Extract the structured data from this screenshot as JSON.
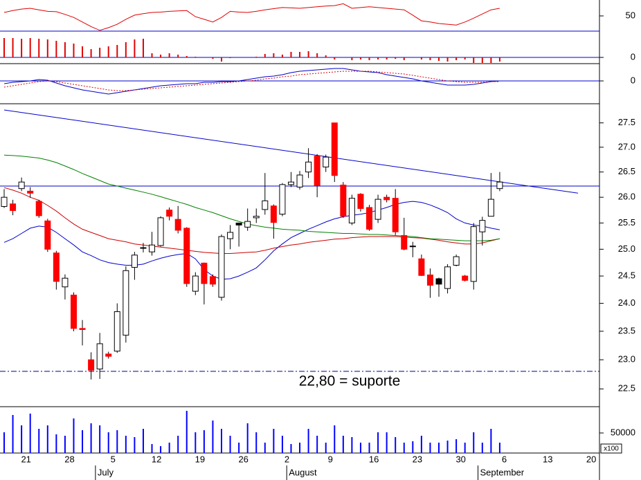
{
  "chart_data": [
    {
      "type": "line",
      "ylim": [
        30,
        70.9
      ],
      "yticks": [
        50
      ],
      "series": [
        {
          "color": "#e00000",
          "values": [
            54.5,
            57,
            59,
            60,
            58,
            56,
            55.5,
            52,
            48,
            42,
            36,
            31,
            34.5,
            39,
            45.5,
            51,
            53,
            54.5,
            55,
            56,
            56.5,
            57,
            49,
            45.5,
            42,
            48,
            56,
            55,
            54.5,
            56,
            58,
            59.5,
            61,
            60.5,
            60,
            61,
            62,
            63,
            63.5,
            66,
            60,
            61,
            62,
            61,
            60,
            59,
            58,
            51,
            43.5,
            42,
            40,
            39,
            38,
            42,
            47,
            52.5,
            58,
            60
          ]
        }
      ],
      "hlines": [
        {
          "value": 30,
          "color": "#0000cc"
        }
      ]
    },
    {
      "type": "bar",
      "ylim": [
        -9,
        38
      ],
      "yticks": [
        0
      ],
      "color": "#e00000",
      "values": [
        28,
        28,
        27,
        28,
        27,
        26,
        24,
        22,
        20,
        16,
        12,
        14,
        16,
        18,
        22,
        26,
        27,
        6,
        4,
        6,
        4,
        2,
        1,
        0,
        -2,
        -6,
        -1,
        0,
        0,
        1,
        5,
        6,
        4,
        8,
        8,
        9,
        6,
        3,
        -3,
        0,
        -4,
        -3,
        -4,
        -3,
        -3,
        -2,
        -4,
        0,
        -3,
        -4,
        -5,
        -6,
        -4,
        -3,
        -8,
        -8,
        -8,
        -6
      ],
      "hlines": [
        {
          "value": 0,
          "color": "#0000cc"
        }
      ]
    },
    {
      "type": "line",
      "ylim": [
        -0.33,
        0.25
      ],
      "yticks": [
        0
      ],
      "series": [
        {
          "color": "#0000cc",
          "values": [
            -0.04,
            -0.02,
            -0.01,
            0,
            0.02,
            0.01,
            -0.03,
            -0.07,
            -0.1,
            -0.13,
            -0.15,
            -0.17,
            -0.19,
            -0.17,
            -0.15,
            -0.13,
            -0.11,
            -0.09,
            -0.07,
            -0.06,
            -0.05,
            -0.04,
            -0.04,
            -0.02,
            -0.02,
            -0.01,
            -0.01,
            0,
            0.02,
            0.04,
            0.06,
            0.07,
            0.09,
            0.12,
            0.14,
            0.15,
            0.16,
            0.17,
            0.18,
            0.18,
            0.16,
            0.14,
            0.13,
            0.12,
            0.09,
            0.07,
            0.05,
            0.03,
            0,
            -0.02,
            -0.04,
            -0.06,
            -0.06,
            -0.06,
            -0.05,
            -0.03,
            -0.01,
            0
          ]
        },
        {
          "color": "#e00000",
          "dash": "dotted",
          "values": [
            -0.09,
            -0.07,
            -0.05,
            -0.03,
            -0.01,
            0,
            -0.01,
            -0.03,
            -0.05,
            -0.07,
            -0.09,
            -0.11,
            -0.13,
            -0.14,
            -0.14,
            -0.13,
            -0.12,
            -0.11,
            -0.1,
            -0.09,
            -0.08,
            -0.07,
            -0.06,
            -0.05,
            -0.04,
            -0.03,
            -0.02,
            -0.01,
            0,
            0.01,
            0.03,
            0.04,
            0.06,
            0.07,
            0.09,
            0.1,
            0.11,
            0.12,
            0.13,
            0.14,
            0.14,
            0.14,
            0.14,
            0.13,
            0.12,
            0.11,
            0.1,
            0.08,
            0.06,
            0.04,
            0.02,
            0,
            -0.01,
            -0.02,
            -0.02,
            -0.02,
            -0.01,
            -0.01
          ]
        }
      ],
      "hlines": [
        {
          "value": 0,
          "color": "#0000cc"
        }
      ]
    },
    {
      "type": "candlestick",
      "log": true,
      "ylim": [
        22.2,
        27.9
      ],
      "yticks": [
        22.5,
        {
          "value": 23,
          "label": "23.0"
        },
        23.5,
        {
          "value": 24,
          "label": "24.0"
        },
        24.5,
        {
          "value": 25,
          "label": "25.0"
        },
        25.5,
        {
          "value": 26,
          "label": "26.0"
        },
        26.5,
        {
          "value": 27,
          "label": "27.0"
        },
        27.5
      ],
      "open": [
        25.82,
        25.87,
        26.17,
        26.12,
        25.92,
        25.54,
        24.93,
        24.3,
        24.15,
        23.55,
        23.0,
        22.84,
        23.1,
        23.15,
        23.43,
        24.66,
        25.02,
        24.95,
        25.07,
        25.75,
        25.57,
        25.4,
        24.22,
        24.74,
        24.49,
        24.11,
        25.2,
        25.46,
        25.42,
        25.6,
        25.76,
        25.83,
        25.67,
        26.25,
        26.2,
        26.5,
        26.82,
        26.6,
        27.5,
        26.24,
        25.5,
        26.06,
        25.8,
        25.57,
        26.0,
        25.98,
        25.26,
        25.05,
        24.82,
        24.52,
        24.35,
        24.27,
        24.7,
        24.5,
        24.4,
        25.33,
        25.63,
        26.17
      ],
      "high": [
        26.16,
        25.95,
        26.39,
        26.2,
        25.95,
        25.58,
        24.97,
        24.53,
        24.2,
        23.7,
        23.13,
        23.47,
        23.14,
        24.0,
        24.68,
        24.95,
        25.12,
        25.33,
        25.63,
        25.8,
        25.83,
        25.42,
        24.57,
        24.75,
        24.53,
        25.28,
        25.46,
        25.5,
        25.78,
        25.78,
        26.48,
        25.86,
        26.28,
        26.5,
        26.52,
        26.98,
        26.86,
        26.85,
        27.5,
        26.3,
        26.05,
        26.08,
        25.85,
        26.05,
        26.05,
        26.16,
        25.6,
        25.14,
        24.9,
        24.64,
        24.47,
        24.72,
        24.9,
        24.52,
        25.5,
        25.62,
        26.48,
        26.5
      ],
      "low": [
        25.79,
        25.65,
        26.12,
        25.99,
        25.6,
        24.95,
        24.25,
        24.07,
        23.5,
        23.25,
        22.66,
        22.67,
        23.02,
        23.12,
        23.3,
        24.43,
        24.94,
        24.88,
        25.05,
        25.55,
        25.3,
        24.3,
        24.15,
        23.98,
        24.3,
        24.05,
        25.0,
        25.05,
        25.35,
        25.5,
        25.66,
        25.2,
        25.63,
        26.2,
        26.15,
        26.38,
        26.0,
        26.5,
        26.3,
        25.6,
        25.46,
        25.72,
        25.35,
        25.5,
        25.9,
        25.27,
        24.98,
        24.85,
        24.5,
        24.1,
        24.12,
        24.18,
        24.68,
        24.4,
        24.25,
        25.07,
        25.63,
        26.12
      ],
      "close": [
        26.0,
        25.74,
        26.3,
        26.08,
        25.64,
        25.0,
        24.4,
        24.46,
        23.55,
        23.53,
        22.82,
        23.28,
        23.06,
        23.85,
        24.6,
        24.89,
        25.03,
        25.08,
        25.6,
        25.63,
        25.36,
        24.36,
        24.5,
        24.36,
        24.35,
        25.24,
        25.32,
        25.5,
        25.53,
        25.63,
        25.93,
        25.51,
        26.25,
        26.3,
        26.44,
        26.7,
        26.23,
        26.8,
        26.43,
        25.63,
        25.98,
        25.78,
        25.38,
        25.96,
        25.95,
        25.33,
        25.0,
        25.06,
        24.51,
        24.33,
        24.45,
        24.67,
        24.86,
        24.42,
        25.43,
        25.55,
        25.96,
        26.3
      ],
      "colors": [
        "#ffffff",
        "#ff0000",
        "#ffffff",
        "#ff0000",
        "#ff0000",
        "#ff0000",
        "#ff0000",
        "#ffffff",
        "#ff0000",
        "#ff0000",
        "#ff0000",
        "#ffffff",
        "#ff0000",
        "#ffffff",
        "#ffffff",
        "#ffffff",
        "#000000",
        "#ffffff",
        "#ffffff",
        "#ff0000",
        "#ff0000",
        "#ff0000",
        "#ffffff",
        "#ff0000",
        "#ff0000",
        "#ffffff",
        "#ffffff",
        "#000000",
        "#ffffff",
        "#ffffff",
        "#ffffff",
        "#ff0000",
        "#ffffff",
        "#ffffff",
        "#ffffff",
        "#ffffff",
        "#ff0000",
        "#ffffff",
        "#ff0000",
        "#ff0000",
        "#ffffff",
        "#ff0000",
        "#ff0000",
        "#ffffff",
        "#ff0000",
        "#ff0000",
        "#ff0000",
        "#000000",
        "#ff0000",
        "#ff0000",
        "#000000",
        "#ffffff",
        "#ffffff",
        "#ff0000",
        "#ffffff",
        "#ffffff",
        "#ffffff",
        "#ffffff"
      ],
      "series": [
        {
          "color": "#0000cc",
          "values": [
            25.13,
            25.2,
            25.3,
            25.4,
            25.44,
            25.42,
            25.32,
            25.2,
            25.08,
            24.95,
            24.88,
            24.8,
            24.75,
            24.72,
            24.7,
            24.7,
            24.72,
            24.78,
            24.83,
            24.87,
            24.9,
            24.92,
            24.82,
            24.62,
            24.5,
            24.44,
            24.45,
            24.5,
            24.57,
            24.65,
            24.8,
            24.97,
            25.1,
            25.22,
            25.3,
            25.38,
            25.45,
            25.52,
            25.58,
            25.62,
            25.65,
            25.67,
            25.7,
            25.75,
            25.8,
            25.86,
            25.9,
            25.92,
            25.9,
            25.85,
            25.78,
            25.7,
            25.58,
            25.5,
            25.46,
            25.44,
            25.4,
            25.37
          ]
        },
        {
          "color": "#cc0000",
          "values": [
            26.19,
            26.14,
            26.08,
            26.0,
            25.94,
            25.84,
            25.73,
            25.6,
            25.48,
            25.38,
            25.32,
            25.26,
            25.2,
            25.17,
            25.14,
            25.1,
            25.08,
            25.06,
            25.04,
            25.02,
            25.0,
            24.98,
            24.96,
            24.94,
            24.93,
            24.92,
            24.92,
            24.93,
            24.94,
            24.95,
            24.98,
            25.02,
            25.05,
            25.08,
            25.1,
            25.13,
            25.15,
            25.17,
            25.19,
            25.2,
            25.22,
            25.23,
            25.24,
            25.24,
            25.24,
            25.24,
            25.23,
            25.22,
            25.21,
            25.19,
            25.17,
            25.14,
            25.12,
            25.1,
            25.1,
            25.12,
            25.16,
            25.2
          ]
        },
        {
          "color": "#008000",
          "values": [
            26.84,
            26.83,
            26.82,
            26.8,
            26.78,
            26.74,
            26.69,
            26.62,
            26.55,
            26.47,
            26.4,
            26.33,
            26.26,
            26.22,
            26.18,
            26.14,
            26.1,
            26.06,
            26.01,
            25.96,
            25.91,
            25.86,
            25.8,
            25.75,
            25.7,
            25.64,
            25.58,
            25.53,
            25.48,
            25.45,
            25.42,
            25.4,
            25.38,
            25.37,
            25.36,
            25.34,
            25.33,
            25.32,
            25.31,
            25.3,
            25.3,
            25.29,
            25.28,
            25.28,
            25.27,
            25.26,
            25.25,
            25.24,
            25.22,
            25.2,
            25.19,
            25.18,
            25.17,
            25.16,
            25.16,
            25.16,
            25.17,
            25.2
          ]
        }
      ],
      "lines": [
        {
          "from": [
            0,
            27.77
          ],
          "to": [
            66,
            26.08
          ],
          "color": "#0000cc"
        }
      ],
      "hlines": [
        {
          "value": 26.22,
          "color": "#0000cc"
        },
        {
          "value": 22.8,
          "color": "#000080",
          "dash": "dashdot"
        }
      ],
      "annotation": {
        "text": "22,80 = suporte",
        "color": "#0000ee"
      }
    },
    {
      "type": "bar",
      "ylim": [
        0,
        115500
      ],
      "yticks": [
        50000
      ],
      "color": "#0000ff",
      "unit_label": "x100",
      "values": [
        51700,
        94800,
        69000,
        98300,
        60300,
        69000,
        46600,
        43100,
        86200,
        56900,
        74100,
        69000,
        51700,
        56900,
        43100,
        39700,
        60300,
        22400,
        17200,
        25900,
        43100,
        105200,
        51700,
        56900,
        81000,
        60300,
        43100,
        25900,
        74100,
        51700,
        25900,
        60300,
        43100,
        22400,
        25900,
        60300,
        43100,
        25900,
        69000,
        43100,
        39700,
        25900,
        25900,
        51700,
        51700,
        39700,
        25900,
        29300,
        43100,
        25900,
        25900,
        31000,
        34500,
        25900,
        51700,
        25900,
        60300,
        25900,
        null,
        null,
        null,
        null,
        null,
        null,
        null,
        null,
        null,
        null,
        null
      ],
      "categories": [
        null,
        null,
        null,
        "21",
        null,
        null,
        null,
        null,
        "28",
        null,
        null,
        null,
        null,
        "5",
        null,
        null,
        null,
        null,
        "12",
        null,
        null,
        null,
        null,
        "19",
        null,
        null,
        null,
        null,
        "26",
        null,
        null,
        null,
        null,
        "2",
        null,
        null,
        null,
        null,
        "9",
        null,
        null,
        null,
        null,
        "16",
        null,
        null,
        null,
        null,
        "23",
        null,
        null,
        null,
        null,
        "30",
        null,
        null,
        null,
        null,
        "6",
        null,
        null,
        null,
        null,
        "13",
        null,
        null,
        null,
        null,
        "20"
      ],
      "months": [
        {
          "label": "July",
          "index": 11
        },
        {
          "label": "August",
          "index": 33
        },
        {
          "label": "September",
          "index": 55
        }
      ]
    }
  ]
}
